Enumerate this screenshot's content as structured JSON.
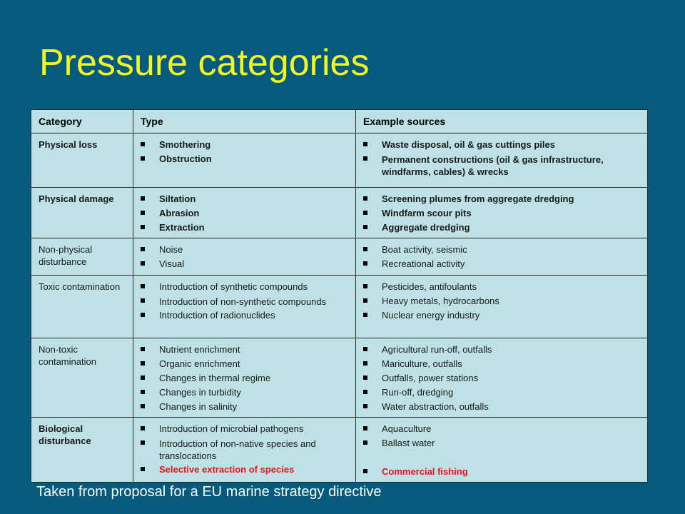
{
  "title": "Pressure categories",
  "caption": "Taken from proposal for a EU marine strategy directive",
  "headers": [
    "Category",
    "Type",
    "Example sources"
  ],
  "rows": [
    {
      "category": "Physical loss",
      "types": [
        "Smothering",
        "Obstruction"
      ],
      "sources": [
        "Waste disposal, oil & gas cuttings piles",
        "Permanent constructions (oil & gas infrastructure, windfarms, cables) & wrecks"
      ]
    },
    {
      "category": "Physical damage",
      "types": [
        "Siltation",
        "Abrasion",
        "Extraction"
      ],
      "sources": [
        "Screening plumes from aggregate dredging",
        "Windfarm scour pits",
        "Aggregate dredging"
      ]
    },
    {
      "category": "Non-physical disturbance",
      "types": [
        "Noise",
        "Visual"
      ],
      "sources": [
        "Boat activity, seismic",
        "Recreational activity"
      ]
    },
    {
      "category": "Toxic contamination",
      "types": [
        "Introduction of synthetic compounds",
        "Introduction of non-synthetic compounds",
        "Introduction of radionuclides"
      ],
      "sources": [
        "Pesticides, antifoulants",
        "Heavy metals, hydrocarbons",
        "Nuclear energy industry"
      ]
    },
    {
      "category": "Non-toxic contamination",
      "types": [
        "Nutrient enrichment",
        "Organic enrichment",
        "Changes in thermal regime",
        "Changes in turbidity",
        "Changes in salinity"
      ],
      "sources": [
        "Agricultural run-off, outfalls",
        "Mariculture, outfalls",
        "Outfalls, power stations",
        "Run-off, dredging",
        "Water abstraction, outfalls"
      ]
    },
    {
      "category": "Biological disturbance",
      "types": [
        "Introduction of microbial pathogens",
        "Introduction of non-native species and translocations",
        "Selective extraction of species"
      ],
      "sources": [
        "Aquaculture",
        "Ballast water",
        "Commercial fishing"
      ]
    }
  ],
  "colors": {
    "background": "#045b7d",
    "title": "#f5f520",
    "table_bg": "#bde1e5",
    "highlight": "#e8141b"
  }
}
